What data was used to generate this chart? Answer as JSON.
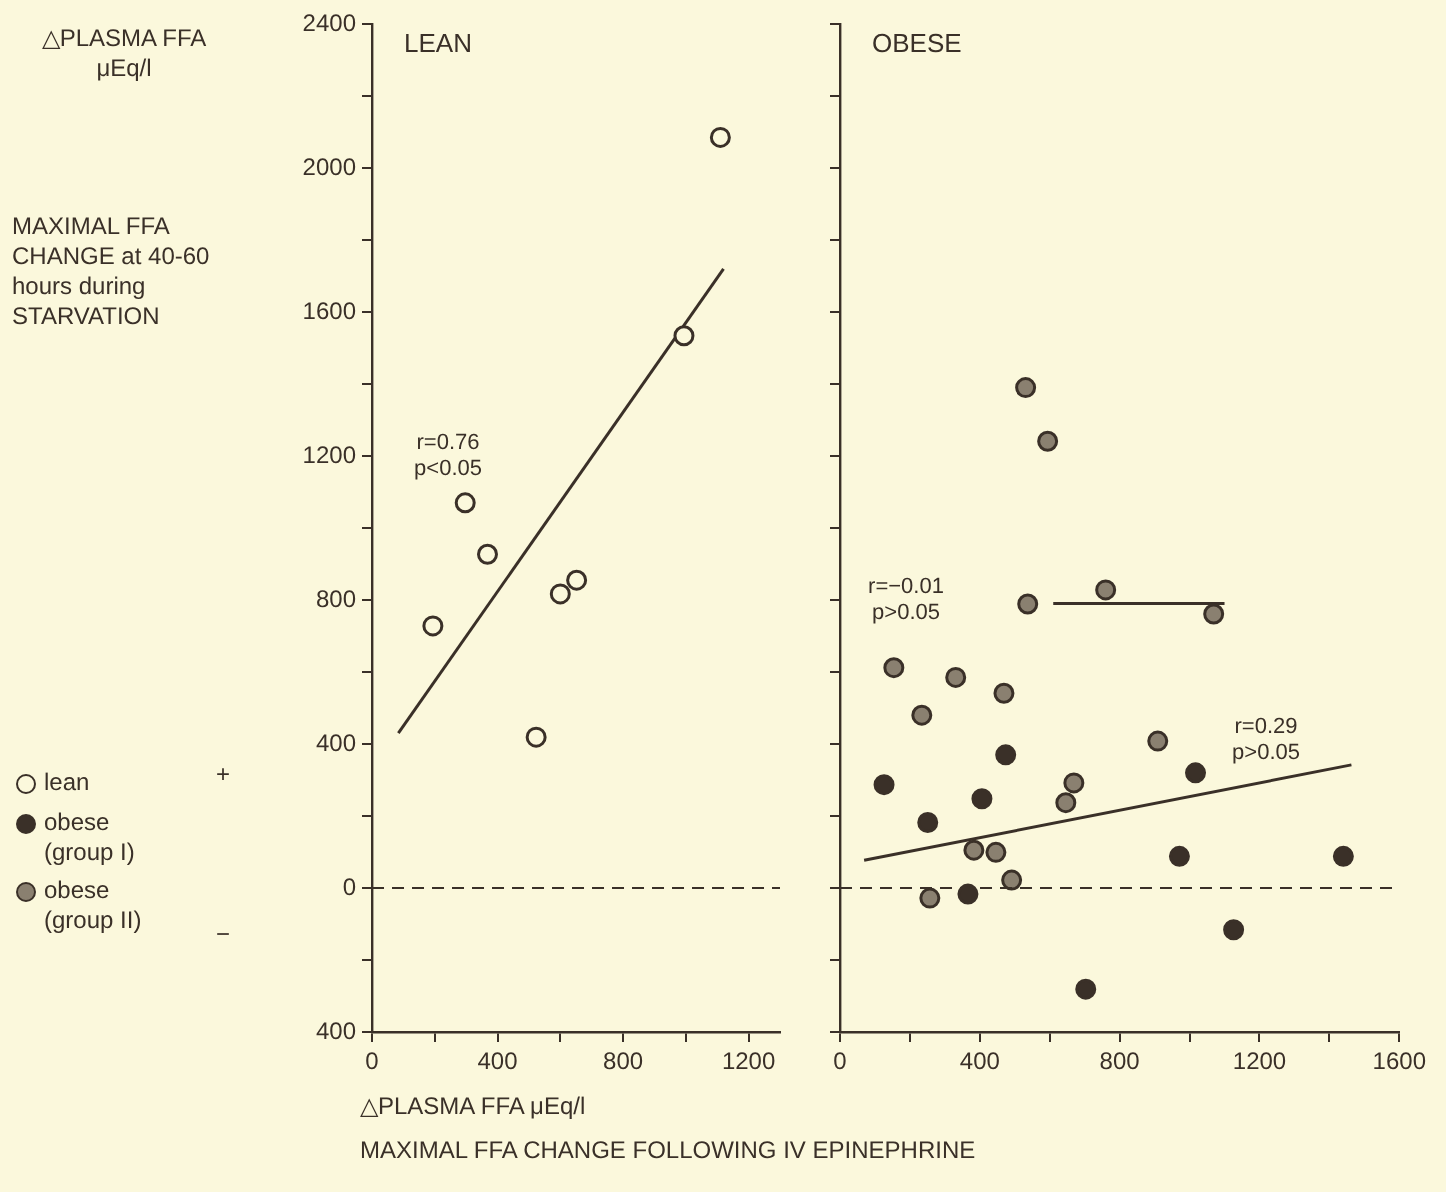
{
  "chart_data": [
    {
      "type": "scatter",
      "title": "LEAN",
      "ylabel": "△PLASMA FFA μEq/l",
      "xlabel": "△PLASMA FFA μEq/l",
      "xlim": [
        0,
        1300
      ],
      "ylim": [
        -400,
        2400
      ],
      "xticks": [
        0,
        {
          "value": 200,
          "label": null
        },
        400,
        {
          "value": 600,
          "label": null
        },
        800,
        {
          "value": 1000,
          "label": null
        },
        1200
      ],
      "yticks": [
        {
          "value": -400,
          "label": "400"
        },
        {
          "value": -200,
          "label": null
        },
        0,
        {
          "value": 200,
          "label": null
        },
        400,
        {
          "value": 600,
          "label": null
        },
        800,
        {
          "value": 1000,
          "label": null
        },
        1200,
        {
          "value": 1400,
          "label": null
        },
        1600,
        {
          "value": 1800,
          "label": null
        },
        2000,
        {
          "value": 2200,
          "label": null
        },
        2400
      ],
      "grid": false,
      "legend": "bottom left",
      "marker": "circle",
      "ref_lines": [
        {
          "axis": "y",
          "value": 0,
          "line_style": "dashed"
        }
      ],
      "annotations": [
        "MAXIMAL FFA CHANGE at 40-60 hours during STARVATION",
        "MAXIMAL FFA CHANGE FOLLOWING IV EPINEPHRINE",
        "+",
        "−",
        "r=0.76 p<0.05"
      ],
      "series": [
        {
          "name": "lean",
          "color": "#fbf8dc",
          "x": [
            194,
            297,
            368,
            523,
            600,
            652,
            994,
            1110
          ],
          "values": [
            728,
            1070,
            927,
            419,
            817,
            855,
            1534,
            2085
          ]
        },
        {
          "type": "line",
          "color": "#3a3028",
          "marker": "none",
          "x": [
            84,
            1120
          ],
          "values": [
            430,
            1720
          ]
        }
      ]
    },
    {
      "type": "scatter",
      "title": "OBESE",
      "xlim": [
        0,
        1600
      ],
      "ylim": [
        -400,
        2400
      ],
      "tick_labels": "x",
      "xticks": [
        0,
        {
          "value": 200,
          "label": null
        },
        400,
        {
          "value": 600,
          "label": null
        },
        800,
        {
          "value": 1000,
          "label": null
        },
        1200,
        {
          "value": 1400,
          "label": null
        },
        1600
      ],
      "yticks": [
        -400,
        -200,
        0,
        200,
        400,
        600,
        800,
        1000,
        1200,
        1400,
        1600,
        1800,
        2000,
        2200,
        2400
      ],
      "grid": false,
      "legend": "bottom left",
      "marker": "circle",
      "ref_lines": [
        {
          "axis": "y",
          "value": 0,
          "line_style": "dashed"
        }
      ],
      "annotations": [
        "r=−0.01 p>0.05",
        "r=0.29 p>0.05"
      ],
      "series": [
        {
          "name": "obese (group I)",
          "color": "#3a3028",
          "x": [
            474,
            1017,
            126,
            406,
            251,
            971,
            1440,
            366,
            1126,
            703
          ],
          "values": [
            370,
            320,
            287,
            248,
            182,
            88,
            88,
            -17,
            -116,
            -281
          ]
        },
        {
          "name": "obese (group II)",
          "color": "#8a8070",
          "x": [
            531,
            594,
            537,
            760,
            1069,
            154,
            331,
            469,
            234,
            909,
            669,
            646,
            383,
            446,
            491,
            257
          ],
          "values": [
            1390,
            1241,
            789,
            828,
            761,
            612,
            585,
            541,
            480,
            408,
            292,
            237,
            105,
            99,
            22,
            -28
          ]
        },
        {
          "type": "line",
          "color": "#3a3028",
          "marker": "none",
          "x": [
            610,
            1100
          ],
          "values": [
            790,
            790
          ]
        },
        {
          "type": "line",
          "color": "#3a3028",
          "marker": "none",
          "x": [
            69,
            1463
          ],
          "values": [
            77,
            342
          ]
        }
      ]
    }
  ]
}
